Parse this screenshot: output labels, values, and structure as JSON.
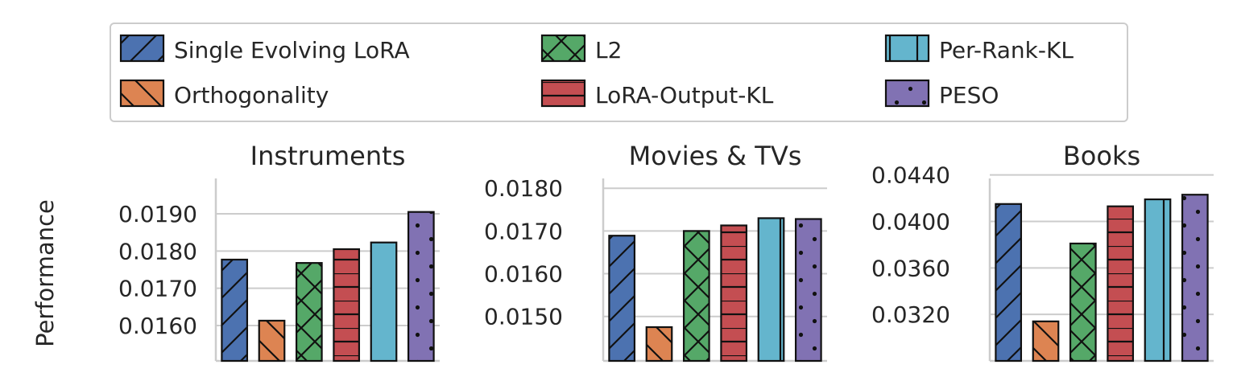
{
  "ylabel": "Performance",
  "legend": {
    "placement": "top-center",
    "entries": [
      {
        "name": "Single Evolving LoRA",
        "color": "#4c72b0",
        "hatch": "diagonal"
      },
      {
        "name": "Orthogonality",
        "color": "#dd8452",
        "hatch": "back-diagonal"
      },
      {
        "name": "L2",
        "color": "#55a868",
        "hatch": "cross"
      },
      {
        "name": "LoRA-Output-KL",
        "color": "#c44e52",
        "hatch": "horizontal"
      },
      {
        "name": "Per-Rank-KL",
        "color": "#64b5cd",
        "hatch": "vertical"
      },
      {
        "name": "PESO",
        "color": "#8172b3",
        "hatch": "dots"
      }
    ]
  },
  "chart_data": [
    {
      "type": "bar",
      "title": "Instruments",
      "categories": [
        "Single Evolving LoRA",
        "Orthogonality",
        "L2",
        "LoRA-Output-KL",
        "Per-Rank-KL",
        "PESO"
      ],
      "values": [
        0.01777,
        0.01613,
        0.01768,
        0.01805,
        0.01823,
        0.01905
      ],
      "ylim": [
        0.01505,
        0.01995
      ],
      "yticks": [
        "0.0160",
        "0.0170",
        "0.0180",
        "0.0190"
      ],
      "ytick_values": [
        0.016,
        0.017,
        0.018,
        0.019
      ],
      "grid": true
    },
    {
      "type": "bar",
      "title": "Movies & TVs",
      "categories": [
        "Single Evolving LoRA",
        "Orthogonality",
        "L2",
        "LoRA-Output-KL",
        "Per-Rank-KL",
        "PESO"
      ],
      "values": [
        0.01689,
        0.01475,
        0.017,
        0.01713,
        0.0173,
        0.01728
      ],
      "ylim": [
        0.01396,
        0.01823
      ],
      "yticks": [
        "0.0150",
        "0.0160",
        "0.0170",
        "0.0180"
      ],
      "ytick_values": [
        0.015,
        0.016,
        0.017,
        0.018
      ],
      "grid": true
    },
    {
      "type": "bar",
      "title": "Books",
      "categories": [
        "Single Evolving LoRA",
        "Orthogonality",
        "L2",
        "LoRA-Output-KL",
        "Per-Rank-KL",
        "PESO"
      ],
      "values": [
        0.0415,
        0.0314,
        0.0381,
        0.0413,
        0.0419,
        0.0423
      ],
      "ylim": [
        0.028,
        0.0437
      ],
      "yticks": [
        "0.0320",
        "0.0360",
        "0.0400",
        "0.0440"
      ],
      "ytick_values": [
        0.032,
        0.036,
        0.04,
        0.044
      ],
      "grid": true
    }
  ]
}
